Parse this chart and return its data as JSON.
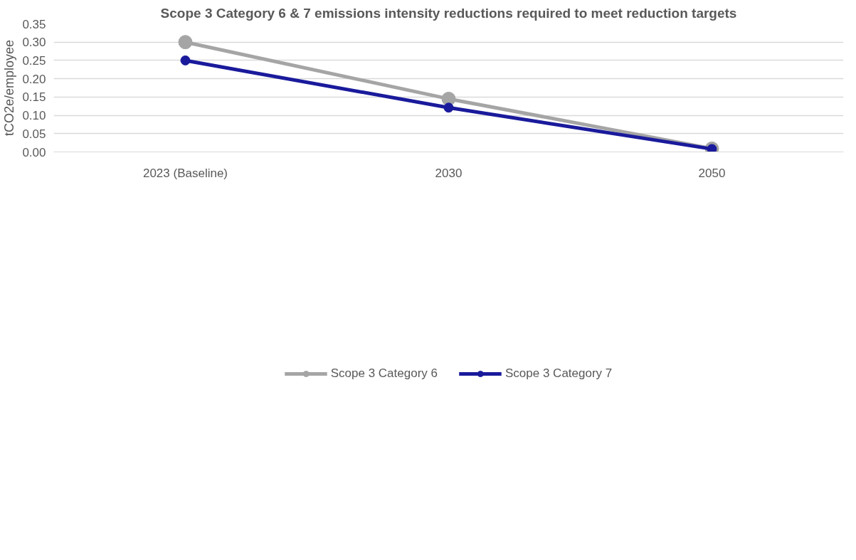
{
  "chart_data": {
    "type": "line",
    "title": "Scope 3 Category 6 & 7 emissions intensity reductions required to meet reduction targets",
    "ylabel": "tCO2e/employee",
    "categories": [
      "2023 (Baseline)",
      "2030",
      "2050"
    ],
    "series": [
      {
        "name": "Scope 3 Category 6",
        "color": "#a5a5a5",
        "values": [
          0.3,
          0.145,
          0.009
        ]
      },
      {
        "name": "Scope 3 Category 7",
        "color": "#1a1a9c",
        "values": [
          0.25,
          0.121,
          0.008
        ]
      }
    ],
    "ylim": [
      0,
      0.35
    ],
    "yticks": [
      {
        "value": 0,
        "label": "0.00"
      },
      {
        "value": 0.05,
        "label": "0.05"
      },
      {
        "value": 0.1,
        "label": "0.10"
      },
      {
        "value": 0.15,
        "label": "0.15"
      },
      {
        "value": 0.2,
        "label": "0.20"
      },
      {
        "value": 0.25,
        "label": "0.25"
      },
      {
        "value": 0.3,
        "label": "0.30"
      },
      {
        "value": 0.35,
        "label": "0.35"
      }
    ],
    "grid": "y",
    "legend": "bottom",
    "marker": "circle",
    "line_style": "solid"
  }
}
